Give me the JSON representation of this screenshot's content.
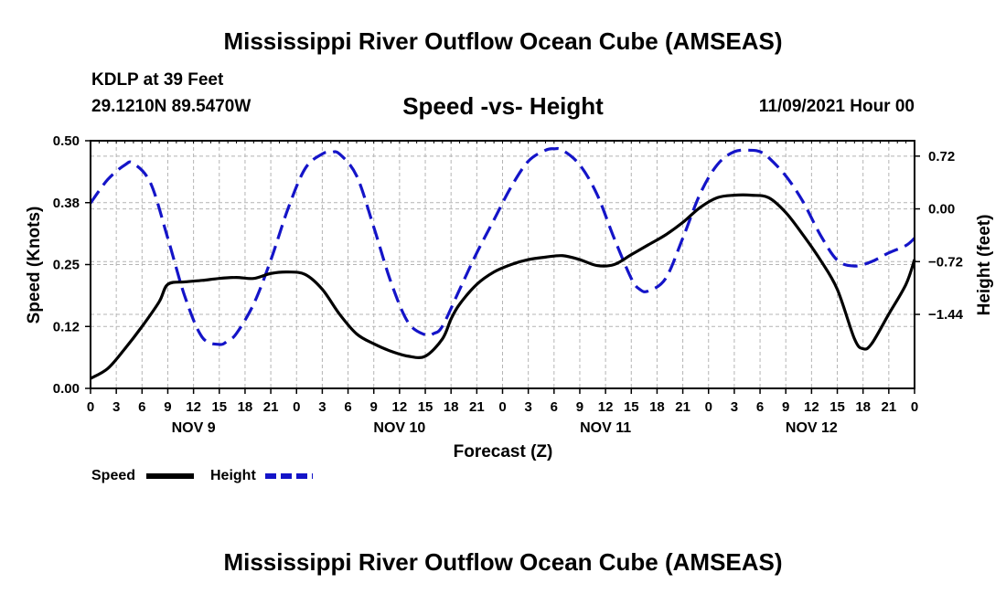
{
  "header": {
    "title": "Mississippi River Outflow Ocean Cube (AMSEAS)",
    "station": "KDLP at 39 Feet",
    "coords": "29.1210N  89.5470W",
    "subtitle": "Speed -vs- Height",
    "datetime": "11/09/2021 Hour 00"
  },
  "footer": {
    "title": "Mississippi River Outflow Ocean Cube (AMSEAS)"
  },
  "colors": {
    "speed": "#000000",
    "height": "#1414c8",
    "grid": "#b4b4b4"
  },
  "chart_data": {
    "type": "line",
    "xlabel": "Forecast (Z)",
    "ylabel_left": "Speed (Knots)",
    "ylabel_right": "Height (feet)",
    "x_unit": "hours from 11/09/2021 00Z",
    "xlim": [
      0,
      96
    ],
    "ylim_left": [
      0,
      0.5
    ],
    "ylim_right": [
      -2.45,
      0.93
    ],
    "x_ticks": [
      0,
      3,
      6,
      9,
      12,
      15,
      18,
      21,
      24,
      27,
      30,
      33,
      36,
      39,
      42,
      45,
      48,
      51,
      54,
      57,
      60,
      63,
      66,
      69,
      72,
      75,
      78,
      81,
      84,
      87,
      90,
      93,
      96
    ],
    "x_tick_labels": [
      "0",
      "3",
      "6",
      "9",
      "12",
      "15",
      "18",
      "21",
      "0",
      "3",
      "6",
      "9",
      "12",
      "15",
      "18",
      "21",
      "0",
      "3",
      "6",
      "9",
      "12",
      "15",
      "18",
      "21",
      "0",
      "3",
      "6",
      "9",
      "12",
      "15",
      "18",
      "21",
      "0"
    ],
    "day_labels": [
      {
        "x": 12,
        "label": "NOV 9"
      },
      {
        "x": 36,
        "label": "NOV 10"
      },
      {
        "x": 60,
        "label": "NOV 11"
      },
      {
        "x": 84,
        "label": "NOV 12"
      }
    ],
    "left_ticks": [
      0.0,
      0.125,
      0.25,
      0.375,
      0.5
    ],
    "left_tick_labels": [
      "0.00",
      "0.12",
      "0.25",
      "0.38",
      "0.50"
    ],
    "right_ticks": [
      0.72,
      0.0,
      -0.72,
      -1.44
    ],
    "right_tick_labels": [
      "0.72",
      "0.00",
      "−0.72",
      "−1.44"
    ],
    "grid": true,
    "legend": [
      {
        "name": "Speed",
        "style": "solid"
      },
      {
        "name": "Height",
        "style": "dashed"
      }
    ],
    "series": [
      {
        "name": "Speed",
        "axis": "left",
        "style": "solid",
        "x": [
          0,
          2,
          4,
          6,
          8,
          9,
          11,
          13,
          15,
          17,
          19,
          21,
          23,
          25,
          27,
          29,
          31,
          33,
          35,
          37,
          39,
          41,
          42,
          43,
          45,
          47,
          49,
          51,
          53,
          55,
          57,
          59,
          61,
          63,
          65,
          67,
          69,
          71,
          73,
          75,
          77,
          79,
          81,
          83,
          85,
          87,
          89,
          90,
          91,
          93,
          95,
          96
        ],
        "y": [
          0.02,
          0.04,
          0.08,
          0.125,
          0.175,
          0.21,
          0.215,
          0.218,
          0.222,
          0.224,
          0.222,
          0.232,
          0.235,
          0.23,
          0.2,
          0.15,
          0.11,
          0.09,
          0.075,
          0.065,
          0.065,
          0.1,
          0.14,
          0.17,
          0.21,
          0.235,
          0.25,
          0.26,
          0.265,
          0.268,
          0.26,
          0.248,
          0.25,
          0.27,
          0.29,
          0.31,
          0.335,
          0.365,
          0.385,
          0.39,
          0.39,
          0.385,
          0.355,
          0.31,
          0.26,
          0.2,
          0.1,
          0.08,
          0.09,
          0.15,
          0.21,
          0.26
        ]
      },
      {
        "name": "Height",
        "axis": "right",
        "style": "dashed",
        "x": [
          0,
          2,
          4,
          5,
          7,
          9,
          11,
          13,
          15,
          16,
          17,
          19,
          21,
          23,
          25,
          27,
          28,
          29,
          31,
          33,
          35,
          37,
          39,
          40,
          41,
          43,
          45,
          47,
          49,
          51,
          53,
          54,
          55,
          57,
          59,
          61,
          63,
          64,
          65,
          67,
          69,
          71,
          73,
          75,
          77,
          78,
          79,
          81,
          83,
          85,
          87,
          89,
          91,
          93,
          95,
          96
        ],
        "y": [
          0.08,
          0.4,
          0.6,
          0.62,
          0.35,
          -0.4,
          -1.2,
          -1.75,
          -1.85,
          -1.8,
          -1.7,
          -1.3,
          -0.7,
          0.0,
          0.55,
          0.75,
          0.77,
          0.75,
          0.45,
          -0.25,
          -1.0,
          -1.55,
          -1.72,
          -1.7,
          -1.6,
          -1.1,
          -0.6,
          -0.15,
          0.3,
          0.65,
          0.8,
          0.82,
          0.8,
          0.6,
          0.2,
          -0.4,
          -0.95,
          -1.1,
          -1.12,
          -0.95,
          -0.4,
          0.2,
          0.6,
          0.78,
          0.8,
          0.78,
          0.7,
          0.45,
          0.1,
          -0.35,
          -0.7,
          -0.78,
          -0.72,
          -0.6,
          -0.5,
          -0.4
        ]
      }
    ]
  }
}
